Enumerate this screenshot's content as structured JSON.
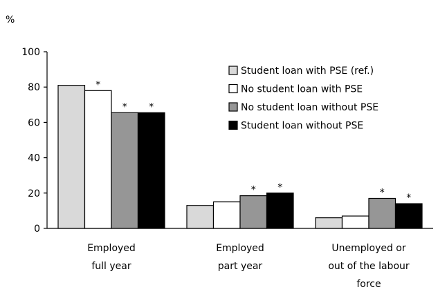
{
  "chart_data": {
    "type": "bar",
    "ylabel": "%",
    "ylim": [
      0,
      100
    ],
    "yticks": [
      0,
      20,
      40,
      60,
      80,
      100
    ],
    "grid": false,
    "legend_position": "top-right",
    "categories": [
      [
        "Employed",
        "full year"
      ],
      [
        "Employed",
        "part year"
      ],
      [
        "Unemployed or",
        "out of the labour",
        "force"
      ]
    ],
    "series": [
      {
        "name": "Student loan with PSE (ref.)",
        "color": "#d9d9d9",
        "values": [
          81,
          13,
          6
        ],
        "significant": [
          false,
          false,
          false
        ]
      },
      {
        "name": "No student loan with PSE",
        "color": "#ffffff",
        "values": [
          78,
          15,
          7
        ],
        "significant": [
          true,
          false,
          false
        ]
      },
      {
        "name": "No student loan without PSE",
        "color": "#969696",
        "values": [
          65.5,
          18.5,
          17
        ],
        "significant": [
          true,
          true,
          true
        ]
      },
      {
        "name": "Student loan without PSE",
        "color": "#000000",
        "values": [
          65.5,
          20,
          14
        ],
        "significant": [
          true,
          true,
          true
        ]
      }
    ],
    "significance_marker": "*"
  }
}
